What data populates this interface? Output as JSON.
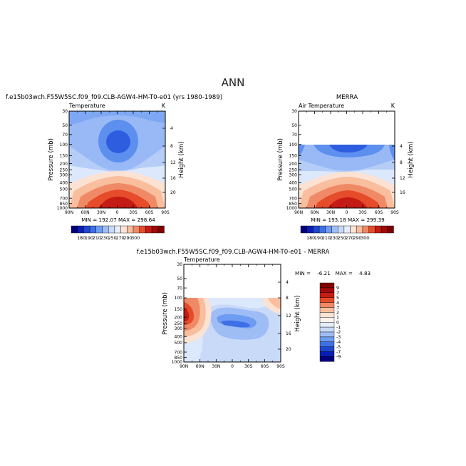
{
  "page": {
    "title": "ANN"
  },
  "palette": {
    "dark_blue": "#000080",
    "main_blue": "#6E9CF2",
    "light_blue": "#B5CDF7",
    "red": "#E64B2A",
    "dark_red": "#800000"
  },
  "chart_data": [
    {
      "type": "contour",
      "id": "model",
      "title": "f.e15b03wch.F55W5SC.f09_f09.CLB-AGW4-HM-T0-e01 (yrs 1980-1989)",
      "variable": "Temperature",
      "units": "K",
      "ylabel": "Pressure (mb)",
      "ylabel_right": "Height (km)",
      "x_ticks": [
        "90N",
        "60N",
        "30N",
        "0",
        "30S",
        "60S",
        "90S"
      ],
      "y_ticks": [
        "30",
        "50",
        "70",
        "100",
        "150",
        "200",
        "250",
        "300",
        "400",
        "500",
        "700",
        "850",
        "1000"
      ],
      "height_ticks": [
        "20",
        "16",
        "12",
        "8",
        "4"
      ],
      "ylim": [
        30,
        1000
      ],
      "stats": "MIN = 192.07   MAX = 298.64",
      "colorbar": {
        "labels": [
          "180",
          "190",
          "210",
          "230",
          "250",
          "270",
          "290",
          "300"
        ]
      }
    },
    {
      "type": "contour",
      "id": "obs",
      "title": "MERRA",
      "variable": "Air Temperature",
      "units": "K",
      "ylabel": "Pressure (mb)",
      "ylabel_right": "Height (km)",
      "x_ticks": [
        "90N",
        "60N",
        "30N",
        "0",
        "30S",
        "60S",
        "90S"
      ],
      "y_ticks": [
        "30",
        "50",
        "70",
        "100",
        "150",
        "200",
        "250",
        "300",
        "400",
        "500",
        "700",
        "850",
        "1000"
      ],
      "height_ticks": [
        "16",
        "12",
        "8",
        "4"
      ],
      "ylim": [
        30,
        1000
      ],
      "data_top": 100,
      "stats": "MIN = 193.18   MAX = 299.39",
      "colorbar": {
        "labels": [
          "180",
          "190",
          "210",
          "230",
          "250",
          "270",
          "290",
          "300"
        ]
      }
    },
    {
      "type": "contour",
      "id": "diff",
      "title": "f.e15b03wch.F55W5SC.f09_f09.CLB-AGW4-HM-T0-e01 - MERRA",
      "variable": "Temperature",
      "ylabel": "Pressure (mb)",
      "ylabel_right": "Height (km)",
      "x_ticks": [
        "90N",
        "60N",
        "30N",
        "0",
        "30S",
        "60S",
        "90S"
      ],
      "y_ticks": [
        "30",
        "50",
        "70",
        "100",
        "150",
        "200",
        "250",
        "300",
        "400",
        "500",
        "700",
        "850",
        "1000"
      ],
      "height_ticks": [
        "20",
        "16",
        "12",
        "8",
        "4"
      ],
      "ylim": [
        30,
        1000
      ],
      "data_top": 100,
      "stats": "MIN =    -6.21   MAX =    4.83",
      "colorbar": {
        "labels": [
          "9",
          "7",
          "5",
          "4",
          "3",
          "2",
          "1",
          "0",
          "-1",
          "-2",
          "-3",
          "-4",
          "-5",
          "-7",
          "-9"
        ]
      }
    }
  ]
}
